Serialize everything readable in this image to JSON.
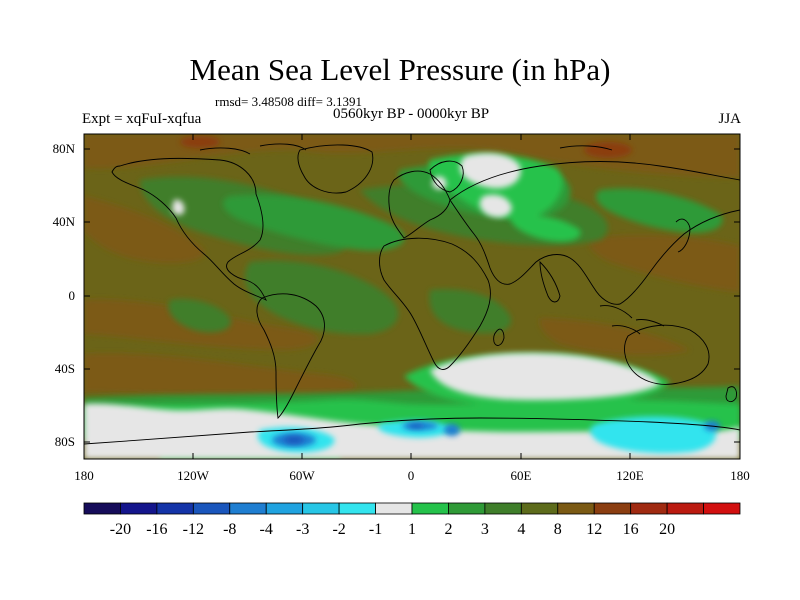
{
  "title": "Mean Sea Level Pressure (in hPa)",
  "stats": "rmsd= 3.48508 diff= 3.1391",
  "left_label": "Expt = xqFuI-xqfua",
  "center_label": "0560kyr BP - 0000kyr BP",
  "right_label": "JJA",
  "lat_labels": [
    "80N",
    "40N",
    "0",
    "40S",
    "80S"
  ],
  "lon_labels": [
    "180",
    "120W",
    "60W",
    "0",
    "60E",
    "120E",
    "180"
  ],
  "colorbar": {
    "colors": [
      "#160c5a",
      "#14158c",
      "#1434a8",
      "#1a56bc",
      "#1f7ed1",
      "#20a3e0",
      "#27c6e6",
      "#33e4ee",
      "#e6e6e6",
      "#25c24b",
      "#2f9a37",
      "#3f7e2a",
      "#5d6b1b",
      "#7b5a14",
      "#8b3e11",
      "#a02a11",
      "#bb1a10",
      "#d20f0f"
    ],
    "labels": [
      "-20",
      "-16",
      "-12",
      "-8",
      "-4",
      "-3",
      "-2",
      "-1",
      "1",
      "2",
      "3",
      "4",
      "8",
      "12",
      "16",
      "20"
    ]
  }
}
